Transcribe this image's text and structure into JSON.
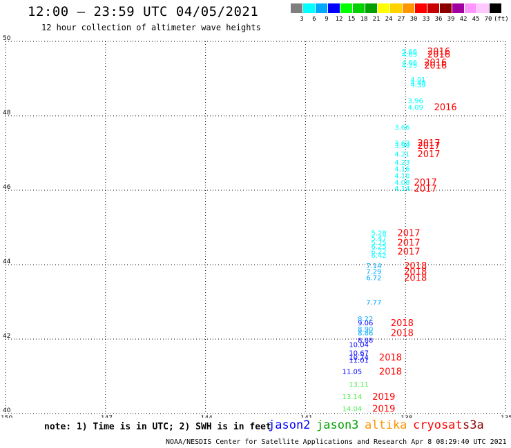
{
  "header": {
    "title": "12:00 – 23:59 UTC 04/05/2021",
    "subtitle": "12 hour collection of altimeter wave heights"
  },
  "scale": {
    "swatches": [
      "#7f7f7f",
      "#00ffff",
      "#00a8ff",
      "#0000ff",
      "#00ff00",
      "#00d200",
      "#00a000",
      "#ffff00",
      "#ffd200",
      "#ff9600",
      "#ff0000",
      "#c80000",
      "#8c0000",
      "#a000a0",
      "#ff96ff",
      "#ffc8ff",
      "#000000"
    ],
    "ticks": [
      "3",
      "6",
      "9",
      "12",
      "15",
      "18",
      "21",
      "24",
      "27",
      "30",
      "33",
      "36",
      "39",
      "42",
      "45",
      "70",
      "(ft)"
    ]
  },
  "map": {
    "x_ticks": [
      "-150",
      "-147",
      "-144",
      "-141",
      "-138",
      "-135"
    ],
    "y_ticks": [
      "50",
      "48",
      "46",
      "44",
      "42",
      "40"
    ],
    "xlim": [
      -150,
      -135
    ],
    "ylim": [
      40,
      50
    ],
    "grid": "dotted",
    "observations": [
      {
        "lat": 49.74,
        "lon": -137.88,
        "swh": "5.66",
        "color": "#00ffff"
      },
      {
        "lat": 49.66,
        "lon": -137.88,
        "swh": "4.69",
        "color": "#00ffff"
      },
      {
        "lat": 49.44,
        "lon": -137.88,
        "swh": "4.66",
        "color": "#00ffff"
      },
      {
        "lat": 49.36,
        "lon": -137.88,
        "swh": "4.29",
        "color": "#00ffff"
      },
      {
        "lat": 48.98,
        "lon": -137.62,
        "swh": "4.01",
        "color": "#00ffff"
      },
      {
        "lat": 48.9,
        "lon": -137.62,
        "swh": "4.48",
        "color": "#00ffff"
      },
      {
        "lat": 48.84,
        "lon": -137.62,
        "swh": "4.39",
        "color": "#00ffff"
      },
      {
        "lat": 48.42,
        "lon": -137.7,
        "swh": "3.96",
        "color": "#00ffff"
      },
      {
        "lat": 48.24,
        "lon": -137.7,
        "swh": "4.09",
        "color": "#00ffff"
      },
      {
        "lat": 47.7,
        "lon": -138.1,
        "swh": "3.66",
        "color": "#00ffff"
      },
      {
        "lat": 47.28,
        "lon": -138.1,
        "swh": "3.63",
        "color": "#00ffff"
      },
      {
        "lat": 47.2,
        "lon": -138.1,
        "swh": "3.99",
        "color": "#00ffff"
      },
      {
        "lat": 46.98,
        "lon": -138.1,
        "swh": "4.21",
        "color": "#00ffff"
      },
      {
        "lat": 46.76,
        "lon": -138.1,
        "swh": "4.23",
        "color": "#00ffff"
      },
      {
        "lat": 46.58,
        "lon": -138.1,
        "swh": "4.16",
        "color": "#00ffff"
      },
      {
        "lat": 46.4,
        "lon": -138.1,
        "swh": "4.10",
        "color": "#00ffff"
      },
      {
        "lat": 46.22,
        "lon": -138.1,
        "swh": "4.08",
        "color": "#00ffff"
      },
      {
        "lat": 46.06,
        "lon": -138.1,
        "swh": "4.14",
        "color": "#00ffff"
      },
      {
        "lat": 44.86,
        "lon": -138.8,
        "swh": "5.28",
        "color": "#00ffff"
      },
      {
        "lat": 44.72,
        "lon": -138.8,
        "swh": "5.47",
        "color": "#00ffff"
      },
      {
        "lat": 44.6,
        "lon": -138.8,
        "swh": "5.75",
        "color": "#00ffff"
      },
      {
        "lat": 44.5,
        "lon": -138.8,
        "swh": "6.25",
        "color": "#00ffff"
      },
      {
        "lat": 44.36,
        "lon": -138.8,
        "swh": "6.22",
        "color": "#00ffff"
      },
      {
        "lat": 44.26,
        "lon": -138.8,
        "swh": "6.42",
        "color": "#00ffff"
      },
      {
        "lat": 43.98,
        "lon": -138.95,
        "swh": "7.14",
        "color": "#00a8ff"
      },
      {
        "lat": 43.82,
        "lon": -138.95,
        "swh": "7.29",
        "color": "#00a8ff"
      },
      {
        "lat": 43.66,
        "lon": -138.95,
        "swh": "6.72",
        "color": "#00a8ff"
      },
      {
        "lat": 43.0,
        "lon": -138.95,
        "swh": "7.77",
        "color": "#00a8ff"
      },
      {
        "lat": 42.56,
        "lon": -139.2,
        "swh": "8.22",
        "color": "#00a8ff"
      },
      {
        "lat": 42.44,
        "lon": -139.2,
        "swh": "9.06",
        "color": "#0000ff"
      },
      {
        "lat": 42.28,
        "lon": -139.2,
        "swh": "8.90",
        "color": "#00a8ff"
      },
      {
        "lat": 42.18,
        "lon": -139.2,
        "swh": "8.86",
        "color": "#00a8ff"
      },
      {
        "lat": 41.98,
        "lon": -139.2,
        "swh": "8.88",
        "color": "#0000ff"
      },
      {
        "lat": 41.86,
        "lon": -139.4,
        "swh": "10.04",
        "color": "#0000ff"
      },
      {
        "lat": 41.64,
        "lon": -139.4,
        "swh": "10.67",
        "color": "#0000ff"
      },
      {
        "lat": 41.52,
        "lon": -139.4,
        "swh": "10.74",
        "color": "#0000ff"
      },
      {
        "lat": 41.44,
        "lon": -139.4,
        "swh": "11.01",
        "color": "#0000ff"
      },
      {
        "lat": 41.14,
        "lon": -139.6,
        "swh": "11.05",
        "color": "#0000ff"
      },
      {
        "lat": 40.8,
        "lon": -139.4,
        "swh": "13.11",
        "color": "#55ee55"
      },
      {
        "lat": 40.46,
        "lon": -139.6,
        "swh": "13.14",
        "color": "#55ee55"
      },
      {
        "lat": 40.14,
        "lon": -139.6,
        "swh": "14.04",
        "color": "#55ee55"
      }
    ],
    "year_labels": [
      {
        "lat": 49.74,
        "lon": -137.0,
        "text": "2016"
      },
      {
        "lat": 49.66,
        "lon": -137.0,
        "text": "2016"
      },
      {
        "lat": 49.44,
        "lon": -137.1,
        "text": "2016"
      },
      {
        "lat": 49.36,
        "lon": -137.1,
        "text": "2016"
      },
      {
        "lat": 48.24,
        "lon": -136.8,
        "text": "2016"
      },
      {
        "lat": 47.28,
        "lon": -137.3,
        "text": "2017"
      },
      {
        "lat": 47.2,
        "lon": -137.3,
        "text": "2017"
      },
      {
        "lat": 46.98,
        "lon": -137.3,
        "text": "2017"
      },
      {
        "lat": 46.22,
        "lon": -137.4,
        "text": "2017"
      },
      {
        "lat": 46.06,
        "lon": -137.4,
        "text": "2017"
      },
      {
        "lat": 44.86,
        "lon": -137.9,
        "text": "2017"
      },
      {
        "lat": 44.6,
        "lon": -137.9,
        "text": "2017"
      },
      {
        "lat": 44.36,
        "lon": -137.9,
        "text": "2017"
      },
      {
        "lat": 43.98,
        "lon": -137.7,
        "text": "2018"
      },
      {
        "lat": 43.82,
        "lon": -137.7,
        "text": "2018"
      },
      {
        "lat": 43.66,
        "lon": -137.7,
        "text": "2018"
      },
      {
        "lat": 42.44,
        "lon": -138.1,
        "text": "2018"
      },
      {
        "lat": 42.18,
        "lon": -138.1,
        "text": "2018"
      },
      {
        "lat": 41.52,
        "lon": -138.45,
        "text": "2018"
      },
      {
        "lat": 41.14,
        "lon": -138.45,
        "text": "2018"
      },
      {
        "lat": 40.46,
        "lon": -138.65,
        "text": "2019"
      },
      {
        "lat": 40.14,
        "lon": -138.65,
        "text": "2019"
      }
    ],
    "year_color": "#ff0000"
  },
  "footer": {
    "note": "note: 1) Time is in UTC; 2) SWH is in feet",
    "satellites": [
      {
        "name": "jason2",
        "color": "#0000ff"
      },
      {
        "name": "jason3",
        "color": "#00a000"
      },
      {
        "name": "altika",
        "color": "#ff9600"
      },
      {
        "name": "cryosat",
        "color": "#ff0000"
      },
      {
        "name": "s3a",
        "color": "#8c0000"
      }
    ],
    "credit": "NOAA/NESDIS Center for Satellite Applications and Research    Apr  8 08:29:40 UTC 2021"
  }
}
